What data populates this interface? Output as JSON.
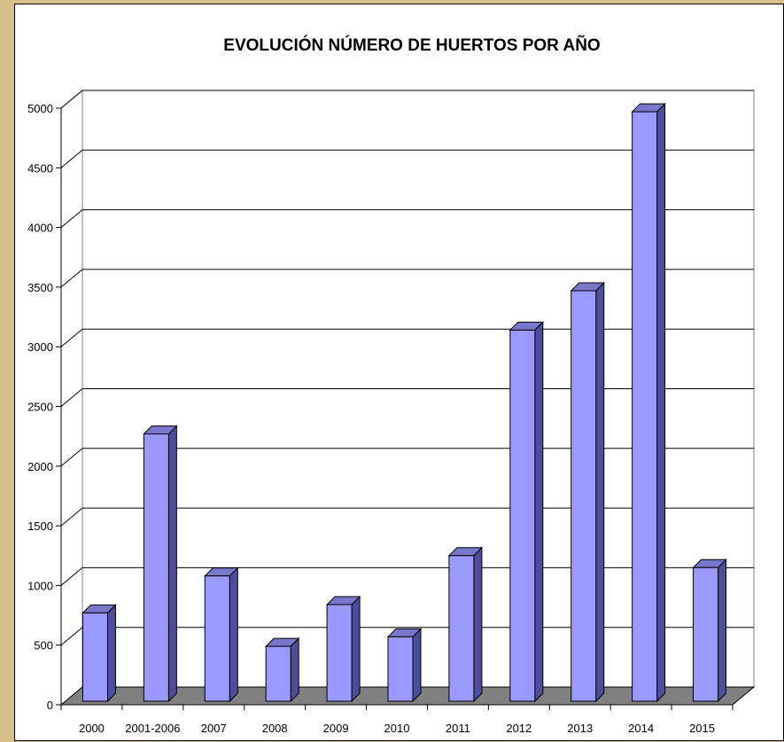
{
  "chart_data": {
    "type": "bar",
    "title": "EVOLUCIÓN NÚMERO DE HUERTOS POR AÑO",
    "xlabel": "",
    "ylabel": "",
    "categories": [
      "2000",
      "2001-2006",
      "2007",
      "2008",
      "2009",
      "2010",
      "2011",
      "2012",
      "2013",
      "2014",
      "2015"
    ],
    "values": [
      740,
      2240,
      1050,
      460,
      810,
      540,
      1220,
      3110,
      3440,
      4940,
      1120
    ],
    "ylim": [
      0,
      5000
    ],
    "yticks": [
      "0",
      "500",
      "1000",
      "1500",
      "2000",
      "2500",
      "3000",
      "3500",
      "4000",
      "4500",
      "5000"
    ],
    "grid": true,
    "legend": "none",
    "colors": {
      "bar_front": "#9999ff",
      "bar_side": "#4d4d99",
      "bar_top": "#7777cc",
      "floor": "#808080",
      "grid": "#000000",
      "page_background": "#d9c08a",
      "plot_background": "#ffffff"
    }
  }
}
